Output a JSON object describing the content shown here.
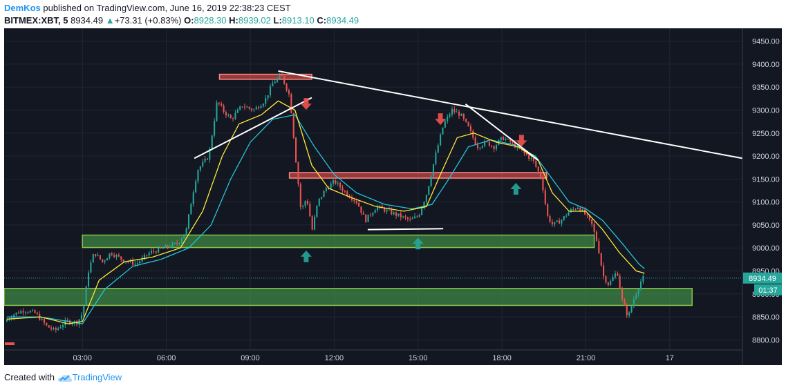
{
  "header": {
    "author": "DemKos",
    "published_text": " published on TradingView.com, June 16, 2019 22:38:23 CEST",
    "symbol": "BITMEX:XBT, 5",
    "last": "8934.49",
    "change_arrow": "▲",
    "change": "+73.31 (+0.83%)",
    "o_label": "O:",
    "o_value": "8928.30",
    "h_label": "H:",
    "h_value": "8939.02",
    "l_label": "L:",
    "l_value": "8913.10",
    "c_label": "C:",
    "c_value": "8934.49"
  },
  "footer": {
    "created_with": "Created with",
    "brand": "TradingView"
  },
  "colors": {
    "background": "#131722",
    "grid": "#232735",
    "up": "#26a69a",
    "down": "#ef5350",
    "ma_fast": "#ffeb3b",
    "ma_slow": "#26c6da",
    "support_zone": "#4caf50",
    "resistance_zone": "#ef5350",
    "trendline": "#ffffff",
    "price_tag": "#26a69a"
  },
  "chart_data": {
    "type": "candlestick",
    "symbol": "BITMEX:XBT",
    "interval": "5",
    "x_ticks": [
      "03:00",
      "06:00",
      "09:00",
      "12:00",
      "15:00",
      "18:00",
      "21:00",
      "17"
    ],
    "x_tick_hours": [
      3,
      6,
      9,
      12,
      15,
      18,
      21,
      24
    ],
    "xlim_hours": [
      0.2,
      26.6
    ],
    "y_ticks": [
      "9450.00",
      "9400.00",
      "9350.00",
      "9300.00",
      "9250.00",
      "9200.00",
      "9150.00",
      "9100.00",
      "9050.00",
      "9000.00",
      "8950.00",
      "8900.00",
      "8850.00",
      "8800.00"
    ],
    "ylim": [
      8778,
      9478
    ],
    "last_price_label": "8934.49",
    "last_price": 8934.49,
    "countdown_label": "01:37",
    "price_path": [
      [
        0.3,
        8840
      ],
      [
        0.6,
        8855
      ],
      [
        1.0,
        8865
      ],
      [
        1.4,
        8858
      ],
      [
        1.8,
        8830
      ],
      [
        2.1,
        8820
      ],
      [
        2.5,
        8840
      ],
      [
        2.9,
        8838
      ],
      [
        3.1,
        8860
      ],
      [
        3.3,
        8950
      ],
      [
        3.5,
        8990
      ],
      [
        3.8,
        8970
      ],
      [
        4.1,
        8990
      ],
      [
        4.5,
        8975
      ],
      [
        5.0,
        8965
      ],
      [
        5.5,
        8990
      ],
      [
        6.0,
        9000
      ],
      [
        6.5,
        9010
      ],
      [
        6.8,
        9040
      ],
      [
        7.0,
        9110
      ],
      [
        7.2,
        9170
      ],
      [
        7.6,
        9200
      ],
      [
        7.9,
        9320
      ],
      [
        8.1,
        9300
      ],
      [
        8.4,
        9280
      ],
      [
        8.8,
        9310
      ],
      [
        9.2,
        9300
      ],
      [
        9.6,
        9320
      ],
      [
        9.9,
        9360
      ],
      [
        10.2,
        9375
      ],
      [
        10.5,
        9330
      ],
      [
        10.7,
        9200
      ],
      [
        10.9,
        9080
      ],
      [
        11.1,
        9110
      ],
      [
        11.3,
        9040
      ],
      [
        11.5,
        9100
      ],
      [
        11.8,
        9130
      ],
      [
        12.1,
        9145
      ],
      [
        12.5,
        9120
      ],
      [
        12.9,
        9100
      ],
      [
        13.2,
        9060
      ],
      [
        13.6,
        9090
      ],
      [
        14.0,
        9080
      ],
      [
        14.4,
        9070
      ],
      [
        14.8,
        9060
      ],
      [
        15.1,
        9070
      ],
      [
        15.4,
        9120
      ],
      [
        15.7,
        9200
      ],
      [
        16.0,
        9270
      ],
      [
        16.3,
        9300
      ],
      [
        16.6,
        9290
      ],
      [
        16.9,
        9260
      ],
      [
        17.2,
        9220
      ],
      [
        17.5,
        9230
      ],
      [
        17.8,
        9220
      ],
      [
        18.1,
        9240
      ],
      [
        18.4,
        9230
      ],
      [
        18.8,
        9210
      ],
      [
        19.2,
        9190
      ],
      [
        19.5,
        9150
      ],
      [
        19.7,
        9070
      ],
      [
        19.9,
        9050
      ],
      [
        20.2,
        9060
      ],
      [
        20.5,
        9080
      ],
      [
        20.8,
        9090
      ],
      [
        21.1,
        9070
      ],
      [
        21.3,
        9050
      ],
      [
        21.5,
        9010
      ],
      [
        21.7,
        8940
      ],
      [
        21.9,
        8920
      ],
      [
        22.2,
        8950
      ],
      [
        22.4,
        8880
      ],
      [
        22.6,
        8850
      ],
      [
        22.8,
        8890
      ],
      [
        23.0,
        8920
      ],
      [
        23.1,
        8934.49
      ]
    ],
    "ma_fast_path": [
      [
        0.3,
        8845
      ],
      [
        1.5,
        8850
      ],
      [
        2.5,
        8835
      ],
      [
        3.0,
        8840
      ],
      [
        3.6,
        8930
      ],
      [
        4.5,
        8970
      ],
      [
        5.5,
        8980
      ],
      [
        6.5,
        9000
      ],
      [
        7.3,
        9080
      ],
      [
        8.0,
        9200
      ],
      [
        8.6,
        9270
      ],
      [
        9.4,
        9290
      ],
      [
        10.0,
        9320
      ],
      [
        10.6,
        9300
      ],
      [
        11.2,
        9180
      ],
      [
        11.8,
        9130
      ],
      [
        12.6,
        9110
      ],
      [
        13.5,
        9090
      ],
      [
        14.5,
        9080
      ],
      [
        15.3,
        9090
      ],
      [
        15.8,
        9160
      ],
      [
        16.4,
        9240
      ],
      [
        17.0,
        9250
      ],
      [
        17.8,
        9230
      ],
      [
        18.6,
        9220
      ],
      [
        19.3,
        9190
      ],
      [
        19.8,
        9120
      ],
      [
        20.4,
        9080
      ],
      [
        21.0,
        9080
      ],
      [
        21.6,
        9040
      ],
      [
        22.2,
        8990
      ],
      [
        22.8,
        8950
      ],
      [
        23.1,
        8945
      ]
    ],
    "ma_slow_path": [
      [
        0.3,
        8850
      ],
      [
        1.5,
        8850
      ],
      [
        2.5,
        8840
      ],
      [
        3.0,
        8835
      ],
      [
        3.8,
        8910
      ],
      [
        4.8,
        8960
      ],
      [
        5.8,
        8975
      ],
      [
        6.8,
        9000
      ],
      [
        7.6,
        9050
      ],
      [
        8.3,
        9150
      ],
      [
        9.0,
        9230
      ],
      [
        9.8,
        9280
      ],
      [
        10.6,
        9290
      ],
      [
        11.3,
        9220
      ],
      [
        12.0,
        9160
      ],
      [
        12.8,
        9120
      ],
      [
        13.8,
        9095
      ],
      [
        14.8,
        9085
      ],
      [
        15.5,
        9095
      ],
      [
        16.1,
        9150
      ],
      [
        16.8,
        9220
      ],
      [
        17.6,
        9235
      ],
      [
        18.4,
        9225
      ],
      [
        19.2,
        9200
      ],
      [
        19.8,
        9150
      ],
      [
        20.4,
        9100
      ],
      [
        21.0,
        9085
      ],
      [
        21.6,
        9060
      ],
      [
        22.3,
        9010
      ],
      [
        22.9,
        8965
      ],
      [
        23.1,
        8955
      ]
    ],
    "zones": [
      {
        "kind": "support",
        "x0": 0.2,
        "x1": 24.8,
        "y0": 8875,
        "y1": 8912
      },
      {
        "kind": "support",
        "x0": 3.0,
        "x1": 21.3,
        "y0": 9001,
        "y1": 9028
      },
      {
        "kind": "resistance",
        "x0": 10.4,
        "x1": 19.6,
        "y0": 9152,
        "y1": 9164
      },
      {
        "kind": "resistance",
        "x0": 7.9,
        "x1": 11.2,
        "y0": 9367,
        "y1": 9378
      }
    ],
    "trendlines": [
      {
        "x0": 10.0,
        "y0": 9385,
        "x1": 26.6,
        "y1": 9195
      },
      {
        "x0": 7.0,
        "y0": 9195,
        "x1": 11.2,
        "y1": 9327
      },
      {
        "x0": 16.7,
        "y0": 9313,
        "x1": 19.3,
        "y1": 9191
      },
      {
        "x0": 13.2,
        "y0": 9040,
        "x1": 15.9,
        "y1": 9042
      }
    ],
    "arrows": [
      {
        "dir": "down",
        "x": 11.0,
        "y": 9305
      },
      {
        "dir": "down",
        "x": 15.8,
        "y": 9272
      },
      {
        "dir": "down",
        "x": 18.7,
        "y": 9225
      },
      {
        "dir": "up",
        "x": 11.0,
        "y": 8990
      },
      {
        "dir": "up",
        "x": 15.0,
        "y": 9018
      },
      {
        "dir": "up",
        "x": 18.5,
        "y": 9137
      }
    ]
  }
}
